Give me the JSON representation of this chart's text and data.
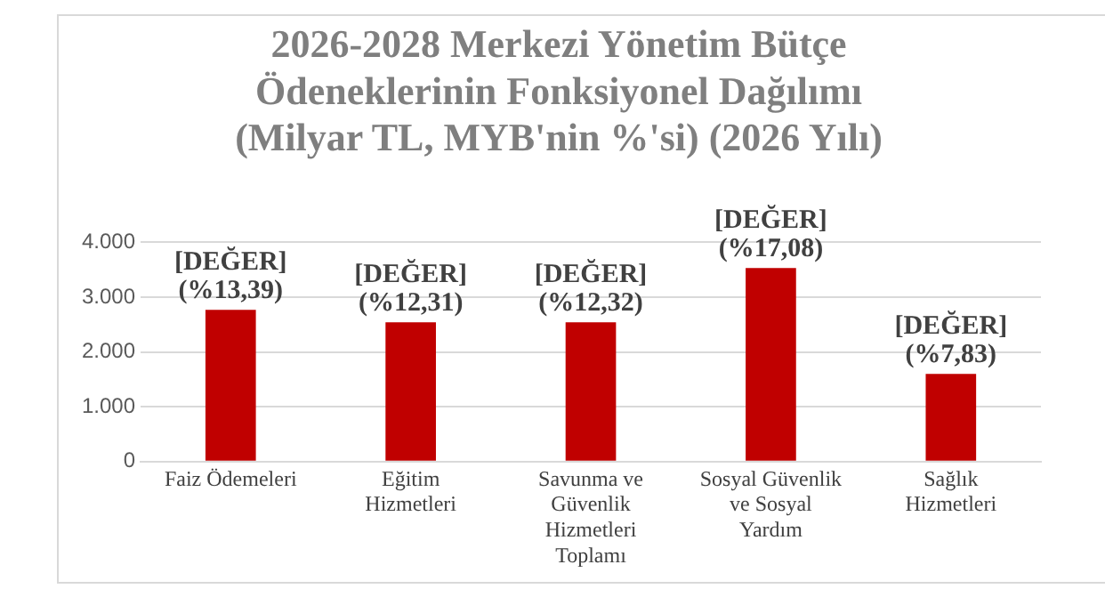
{
  "chart_data": {
    "type": "bar",
    "title": "2026-2028 Merkezi Yönetim Bütçe Ödeneklerinin Fonksiyonel Dağılımı (Milyar TL, MYB'nin %'si) (2026 Yılı)",
    "categories": [
      "Faiz Ödemeleri",
      "Eğitim Hizmetleri",
      "Savunma ve Güvenlik Hizmetleri Toplamı",
      "Sosyal Güvenlik ve Sosyal Yardım",
      "Sağlık Hizmetleri"
    ],
    "values": [
      2770,
      2540,
      2540,
      3530,
      1600
    ],
    "annotations": [
      {
        "text": "[DEĞER] (%13,39)",
        "x": "Faiz Ödemeleri",
        "y": 2770
      },
      {
        "text": "[DEĞER] (%12,31)",
        "x": "Eğitim Hizmetleri",
        "y": 2540
      },
      {
        "text": "[DEĞER] (%12,32)",
        "x": "Savunma ve Güvenlik Hizmetleri Toplamı",
        "y": 2540
      },
      {
        "text": "[DEĞER] (%17,08)",
        "x": "Sosyal Güvenlik ve Sosyal Yardım",
        "y": 3530
      },
      {
        "text": "[DEĞER] (%7,83)",
        "x": "Sağlık Hizmetleri",
        "y": 1600
      }
    ],
    "color": "#c00000",
    "ylim": [
      0,
      4000
    ],
    "yticks": [
      {
        "value": 0,
        "label": "0"
      },
      {
        "value": 1000,
        "label": "1.000"
      },
      {
        "value": 2000,
        "label": "2.000"
      },
      {
        "value": 3000,
        "label": "3.000"
      },
      {
        "value": 4000,
        "label": "4.000"
      }
    ],
    "grid": true
  }
}
